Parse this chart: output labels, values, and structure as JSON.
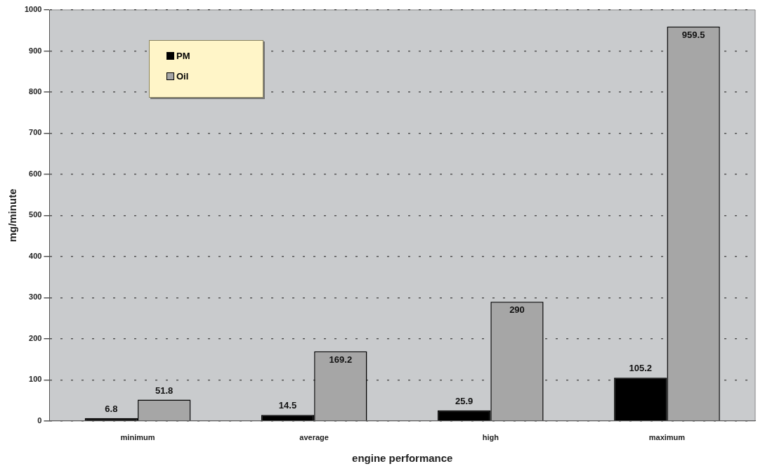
{
  "chart_data": {
    "type": "bar",
    "xlabel": "engine performance",
    "ylabel": "mg/minute",
    "categories": [
      "minimum",
      "average",
      "high",
      "maximum"
    ],
    "series": [
      {
        "name": "PM",
        "color": "#000000",
        "values": [
          6.8,
          14.5,
          25.9,
          105.2
        ]
      },
      {
        "name": "Oil",
        "color": "#a6a6a6",
        "values": [
          51.8,
          169.2,
          290,
          959.5
        ]
      }
    ],
    "ylim": [
      0,
      1000
    ],
    "yticks": [
      0,
      100,
      200,
      300,
      400,
      500,
      600,
      700,
      800,
      900,
      1000
    ],
    "grid": "y",
    "legend": "top left",
    "data_labels": true
  }
}
